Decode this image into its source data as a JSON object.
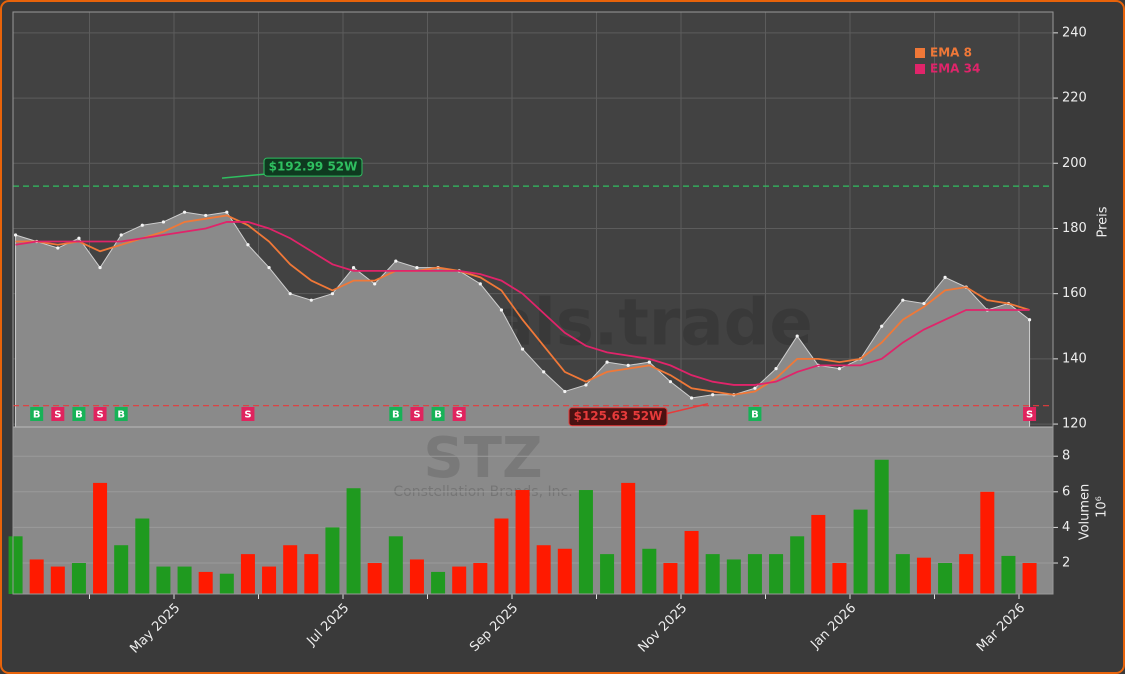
{
  "chart_data": {
    "type": "candlestick_volume",
    "title": "STZ",
    "subtitle": "Constellation Brands, Inc.",
    "watermark": "forexsignals.trade",
    "x": [
      "2025-03",
      "2025-03",
      "2025-03",
      "2025-03",
      "2025-04",
      "2025-04",
      "2025-04",
      "2025-04",
      "2025-05",
      "2025-05",
      "2025-05",
      "2025-05",
      "2025-06",
      "2025-06",
      "2025-06",
      "2025-06",
      "2025-07",
      "2025-07",
      "2025-07",
      "2025-07",
      "2025-08",
      "2025-08",
      "2025-08",
      "2025-08",
      "2025-09",
      "2025-09",
      "2025-09",
      "2025-09",
      "2025-10",
      "2025-10",
      "2025-10",
      "2025-10",
      "2025-11",
      "2025-11",
      "2025-11",
      "2025-11",
      "2025-12",
      "2025-12",
      "2025-12",
      "2025-12",
      "2026-01",
      "2026-01",
      "2026-01",
      "2026-01",
      "2026-02",
      "2026-02",
      "2026-02",
      "2026-02",
      "2026-03"
    ],
    "close": [
      178,
      176,
      174,
      177,
      168,
      178,
      181,
      182,
      185,
      184,
      185,
      175,
      168,
      160,
      158,
      160,
      168,
      163,
      170,
      168,
      168,
      167,
      163,
      155,
      143,
      136,
      130,
      132,
      139,
      138,
      139,
      133,
      128,
      129,
      129,
      131,
      137,
      147,
      138,
      137,
      140,
      150,
      158,
      157,
      165,
      162,
      155,
      157,
      152
    ],
    "area_color": "#8a8a8a",
    "series": [
      {
        "name": "EMA 8",
        "color": "#f07838",
        "values": [
          176,
          176,
          175,
          176,
          173,
          175,
          177,
          179,
          182,
          183,
          184,
          181,
          176,
          169,
          164,
          161,
          164,
          164,
          167,
          167,
          168,
          167,
          165,
          161,
          152,
          144,
          136,
          133,
          136,
          137,
          138,
          135,
          131,
          130,
          129,
          130,
          134,
          140,
          140,
          139,
          140,
          145,
          152,
          156,
          161,
          162,
          158,
          157,
          155
        ]
      },
      {
        "name": "EMA 34",
        "color": "#e0246a",
        "values": [
          175,
          176,
          176,
          176,
          176,
          176,
          177,
          178,
          179,
          180,
          182,
          182,
          180,
          177,
          173,
          169,
          167,
          167,
          167,
          167,
          167,
          167,
          166,
          164,
          160,
          154,
          148,
          144,
          142,
          141,
          140,
          138,
          135,
          133,
          132,
          132,
          133,
          136,
          138,
          138,
          138,
          140,
          145,
          149,
          152,
          155,
          155,
          155,
          155
        ]
      }
    ],
    "volume": [
      3.5,
      2.2,
      1.8,
      2.0,
      6.5,
      3.0,
      4.5,
      1.8,
      1.8,
      1.5,
      1.4,
      2.5,
      1.8,
      3.0,
      2.5,
      4.0,
      6.2,
      2.0,
      3.5,
      2.2,
      1.5,
      1.8,
      2.0,
      4.5,
      6.1,
      3.0,
      2.8,
      6.1,
      2.5,
      6.5,
      2.8,
      2.0,
      3.8,
      2.5,
      2.2,
      2.5,
      2.5,
      3.5,
      4.7,
      2.0,
      5.0,
      7.8,
      2.5,
      2.3,
      2.0,
      2.5,
      6.0,
      2.4,
      2.0
    ],
    "volume_up_color": "#1f9a1f",
    "volume_down_color": "#ff1a00",
    "signals": [
      null,
      "B",
      "S",
      "B",
      "S",
      "B",
      null,
      null,
      null,
      null,
      null,
      "S",
      null,
      null,
      null,
      null,
      null,
      null,
      "B",
      "S",
      "B",
      "S",
      null,
      null,
      null,
      null,
      null,
      null,
      null,
      null,
      null,
      null,
      null,
      null,
      null,
      "B",
      null,
      null,
      null,
      null,
      null,
      null,
      null,
      null,
      null,
      null,
      null,
      null,
      "S"
    ],
    "signal_colors": {
      "B": "#17b257",
      "S": "#e0245e"
    },
    "high_52w": {
      "value": 192.99,
      "label": "$192.99 52W",
      "color": "#2fbf60"
    },
    "low_52w": {
      "value": 125.63,
      "label": "$125.63 52W",
      "color": "#e63b3b"
    },
    "ylabel": "Preis",
    "ylim": [
      119.1,
      246.4
    ],
    "yticks": [
      120,
      140,
      160,
      180,
      200,
      220,
      240
    ],
    "volume_ylabel": "Volumen",
    "volume_exponent": "10⁶",
    "volume_ylim": [
      0.26,
      9.64
    ],
    "volume_yticks": [
      2,
      4,
      6,
      8
    ],
    "xticks": [
      {
        "value": "2025-04",
        "label": null
      },
      {
        "value": "2025-05",
        "label": "May 2025"
      },
      {
        "value": "2025-06",
        "label": null
      },
      {
        "value": "2025-07",
        "label": "Jul 2025"
      },
      {
        "value": "2025-08",
        "label": null
      },
      {
        "value": "2025-09",
        "label": "Sep 2025"
      },
      {
        "value": "2025-10",
        "label": null
      },
      {
        "value": "2025-11",
        "label": "Nov 2025"
      },
      {
        "value": "2025-12",
        "label": null
      },
      {
        "value": "2026-01",
        "label": "Jan 2026"
      },
      {
        "value": "2026-02",
        "label": null
      },
      {
        "value": "2026-03",
        "label": "Mar 2026"
      }
    ],
    "grid": true,
    "legend": "upper right"
  }
}
